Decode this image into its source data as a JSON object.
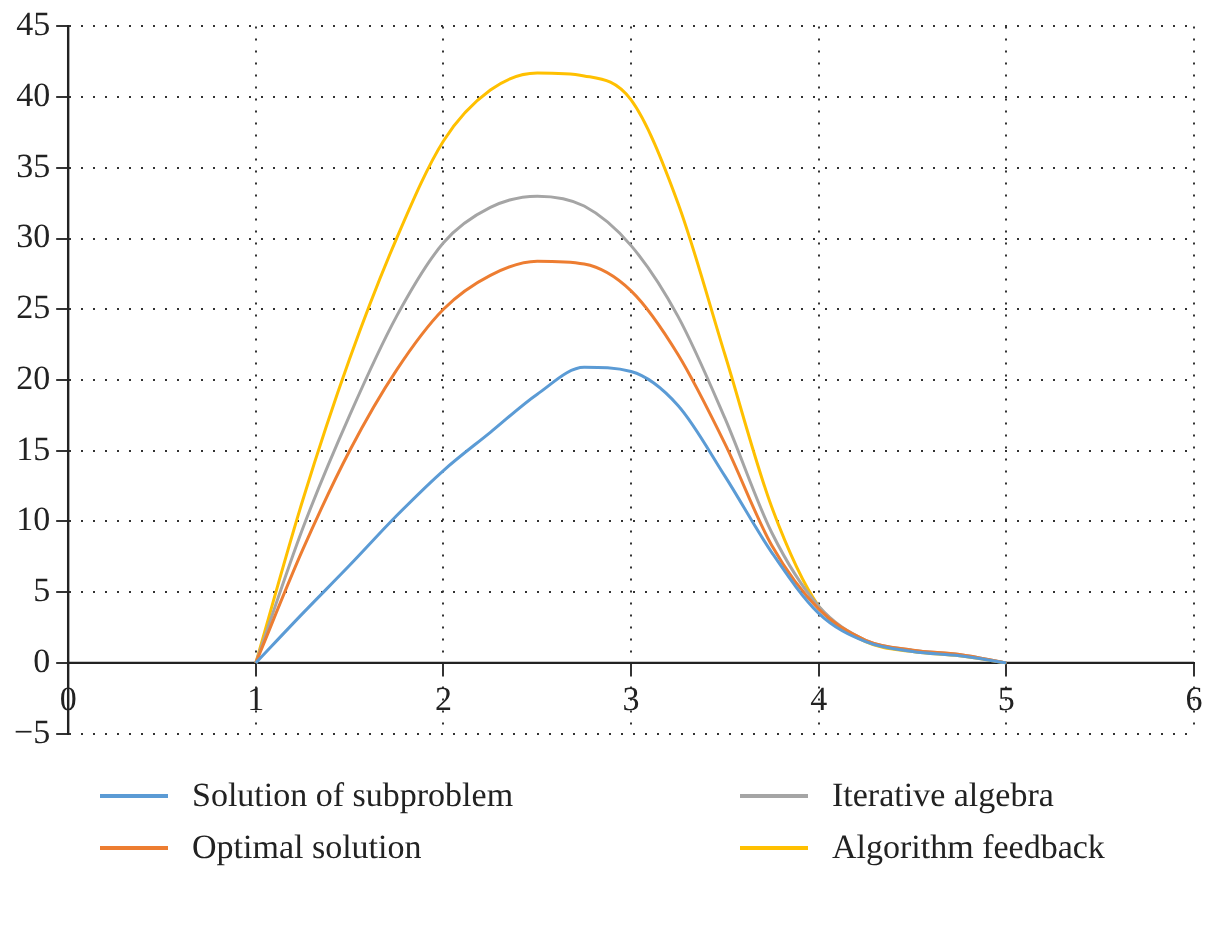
{
  "chart_data": {
    "type": "line",
    "x": [
      1,
      1.25,
      1.5,
      1.75,
      2,
      2.25,
      2.5,
      2.75,
      3,
      3.25,
      3.5,
      3.75,
      4,
      4.25,
      4.5,
      4.75,
      5
    ],
    "series": [
      {
        "name": "Solution of subproblem",
        "color": "#5b9bd5",
        "values": [
          0,
          3.5,
          6.9,
          10.4,
          13.6,
          16.3,
          19,
          20.9,
          20.6,
          18.2,
          13.2,
          7.8,
          3.5,
          1.5,
          0.8,
          0.5,
          0
        ]
      },
      {
        "name": "Optimal solution",
        "color": "#ed7d31",
        "values": [
          0,
          8,
          15,
          20.7,
          25,
          27.4,
          28.4,
          28.2,
          26.3,
          21.8,
          15.5,
          8.3,
          3.8,
          1.6,
          0.9,
          0.6,
          0
        ]
      },
      {
        "name": "Iterative algebra",
        "color": "#a5a5a5",
        "values": [
          0,
          9.5,
          17.5,
          24.5,
          29.7,
          32.2,
          33,
          32.3,
          29.5,
          24.5,
          17.3,
          9.2,
          4,
          1.6,
          0.9,
          0.6,
          0
        ]
      },
      {
        "name": "Algorithm feedback",
        "color": "#ffc000",
        "values": [
          0,
          11.5,
          21.5,
          30,
          36.9,
          40.5,
          41.7,
          41.5,
          39.8,
          32.5,
          21.8,
          11,
          4,
          1.5,
          0.8,
          0.5,
          0
        ]
      }
    ],
    "xlim": [
      0,
      6
    ],
    "xticks": [
      0,
      1,
      2,
      3,
      4,
      5,
      6
    ],
    "ylim": [
      -5,
      45
    ],
    "yticks": [
      -5,
      0,
      5,
      10,
      15,
      20,
      25,
      30,
      35,
      40,
      45
    ],
    "grid": true,
    "legend": "bottom",
    "marker": "none",
    "line_style": "solid"
  }
}
